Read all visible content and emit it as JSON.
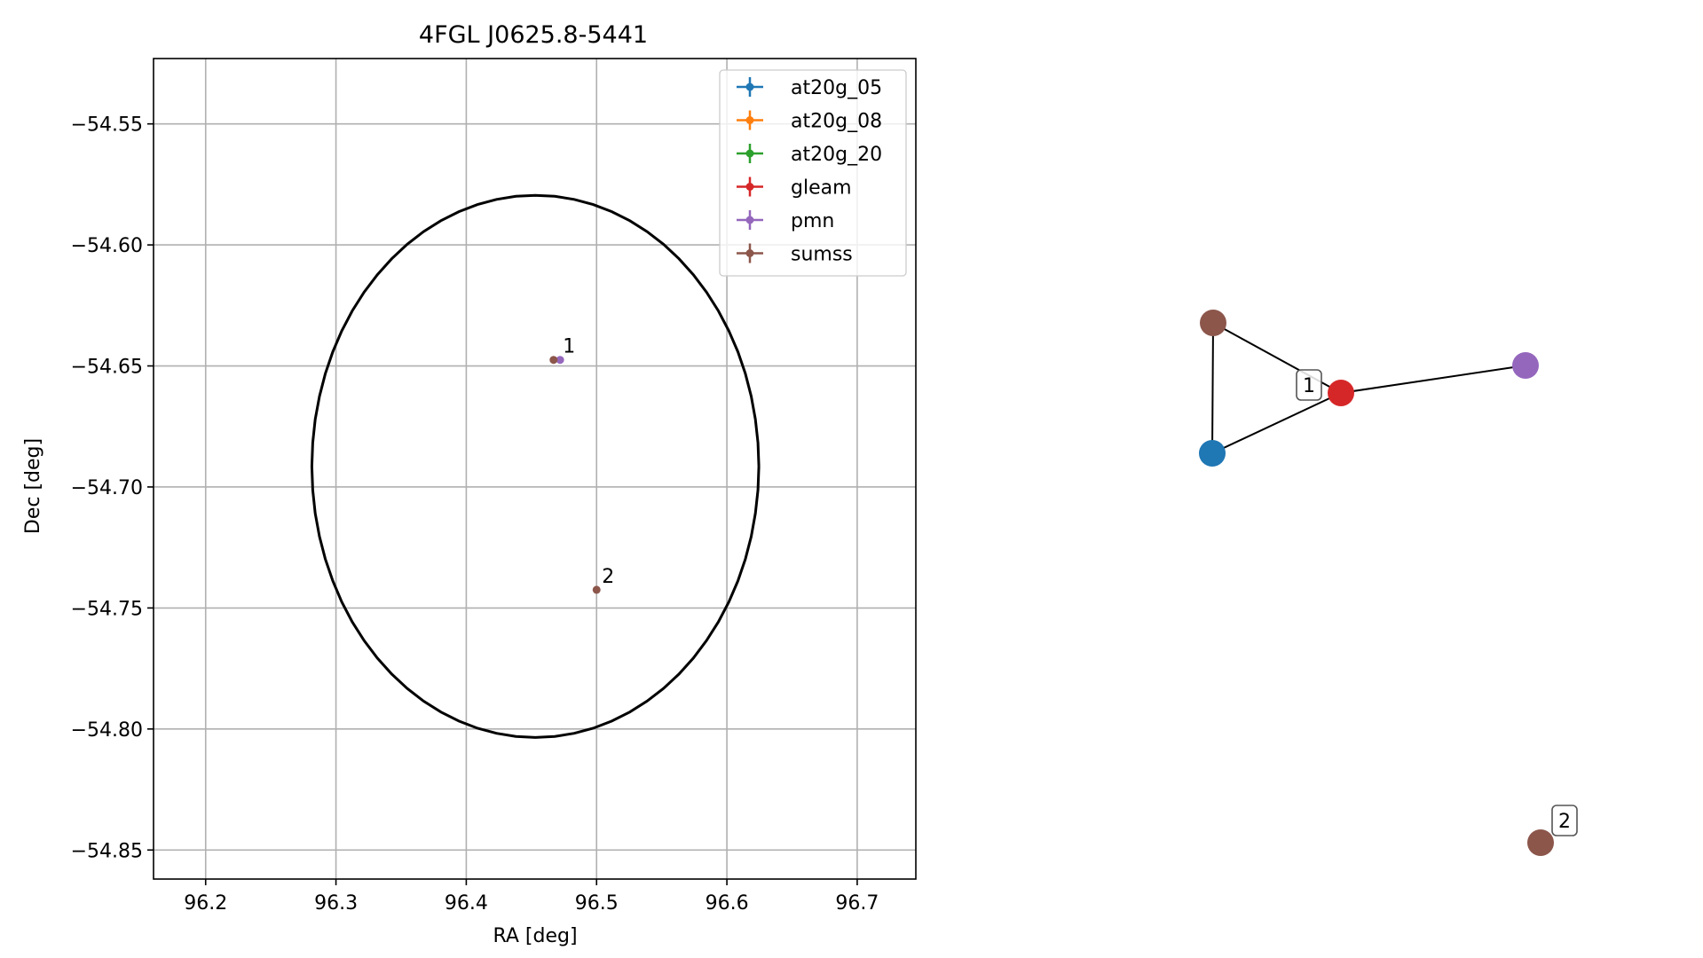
{
  "chart_data": [
    {
      "type": "scatter",
      "title": "4FGL J0625.8-5441",
      "xlabel": "RA [deg]",
      "ylabel": "Dec [deg]",
      "xlim": [
        96.16,
        96.745
      ],
      "ylim": [
        -54.862,
        -54.523
      ],
      "xticks": [
        96.2,
        96.3,
        96.4,
        96.5,
        96.6,
        96.7
      ],
      "xtick_labels": [
        "96.2",
        "96.3",
        "96.4",
        "96.5",
        "96.6",
        "96.7"
      ],
      "yticks": [
        -54.55,
        -54.6,
        -54.65,
        -54.7,
        -54.75,
        -54.8,
        -54.85
      ],
      "ytick_labels": [
        "−54.55",
        "−54.60",
        "−54.65",
        "−54.70",
        "−54.75",
        "−54.80",
        "−54.85"
      ],
      "grid": true,
      "legend_placement": "top-right",
      "series": [
        {
          "name": "at20g_05",
          "color": "#1f77b4",
          "points": []
        },
        {
          "name": "at20g_08",
          "color": "#ff7f0e",
          "points": []
        },
        {
          "name": "at20g_20",
          "color": "#2ca02c",
          "points": []
        },
        {
          "name": "gleam",
          "color": "#d62728",
          "points": []
        },
        {
          "name": "pmn",
          "color": "#9467bd",
          "points": [
            {
              "x": 96.472,
              "y": -54.6475
            }
          ]
        },
        {
          "name": "sumss",
          "color": "#8c564b",
          "points": [
            {
              "x": 96.467,
              "y": -54.6475
            },
            {
              "x": 96.5,
              "y": -54.7425
            }
          ]
        }
      ],
      "ellipse": {
        "center_x": 96.453,
        "center_y": -54.6915,
        "semi_axis_ra": 0.1715,
        "semi_axis_dec": 0.112,
        "color": "#000000"
      },
      "annotations": [
        {
          "text": "1",
          "x": 96.47,
          "y": -54.6475
        },
        {
          "text": "2",
          "x": 96.5,
          "y": -54.7425
        }
      ]
    },
    {
      "type": "network",
      "nodes": [
        {
          "id": "sumss_a",
          "color": "#8c564b"
        },
        {
          "id": "at20g",
          "color": "#1f77b4"
        },
        {
          "id": "gleam",
          "color": "#d62728"
        },
        {
          "id": "pmn",
          "color": "#9467bd"
        },
        {
          "id": "sumss_b",
          "color": "#8c564b"
        }
      ],
      "edges": [
        [
          "sumss_a",
          "at20g"
        ],
        [
          "sumss_a",
          "gleam"
        ],
        [
          "at20g",
          "gleam"
        ],
        [
          "gleam",
          "pmn"
        ]
      ],
      "labels": [
        {
          "text": "1",
          "node": "gleam"
        },
        {
          "text": "2",
          "node": "sumss_b"
        }
      ]
    }
  ]
}
